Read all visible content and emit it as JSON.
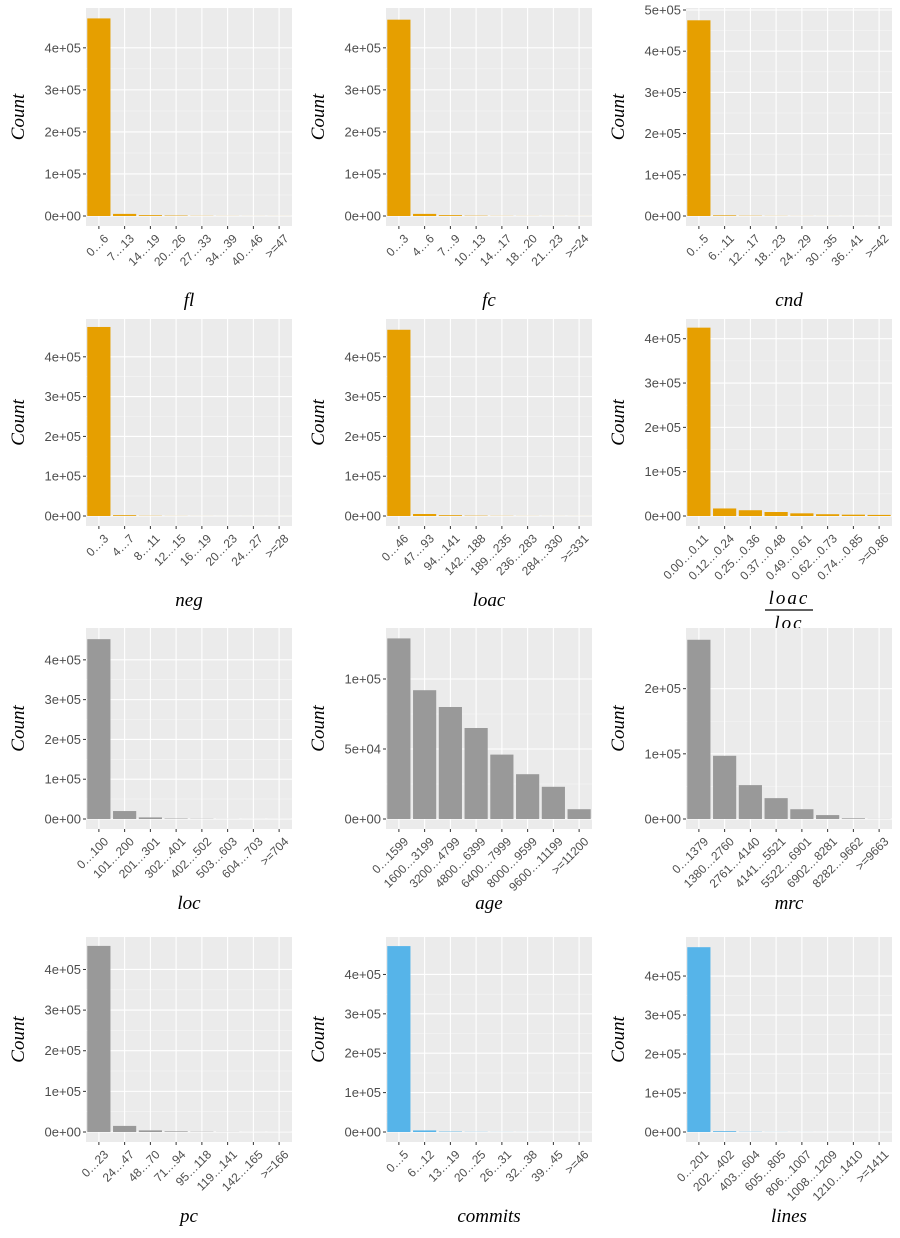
{
  "colors": {
    "orange": "#E69F00",
    "gray": "#999999",
    "blue": "#56B4E9",
    "panel_bg": "#EBEBEB",
    "grid": "#FFFFFF"
  },
  "chart_data": [
    {
      "type": "bar",
      "color": "orange",
      "xlabel": "fl",
      "ylabel": "Count",
      "categories": [
        "0…6",
        "7…13",
        "14…19",
        "20…26",
        "27…33",
        "34…39",
        "40…46",
        ">=47"
      ],
      "values": [
        470000,
        5000,
        2000,
        1000,
        400,
        200,
        100,
        100
      ],
      "ylim": [
        0,
        490000
      ],
      "yticks": [
        0,
        100000,
        200000,
        300000,
        400000
      ],
      "ytick_labels": [
        "0e+00",
        "1e+05",
        "2e+05",
        "3e+05",
        "4e+05"
      ]
    },
    {
      "type": "bar",
      "color": "orange",
      "xlabel": "fc",
      "ylabel": "Count",
      "categories": [
        "0…3",
        "4…6",
        "7…9",
        "10…13",
        "14…17",
        "18…20",
        "21…23",
        ">=24"
      ],
      "values": [
        467000,
        5000,
        2000,
        700,
        300,
        200,
        100,
        100
      ],
      "ylim": [
        0,
        490000
      ],
      "yticks": [
        0,
        100000,
        200000,
        300000,
        400000
      ],
      "ytick_labels": [
        "0e+00",
        "1e+05",
        "2e+05",
        "3e+05",
        "4e+05"
      ]
    },
    {
      "type": "bar",
      "color": "orange",
      "xlabel": "cnd",
      "ylabel": "Count",
      "categories": [
        "0…5",
        "6…11",
        "12…17",
        "18…23",
        "24…29",
        "30…35",
        "36…41",
        ">=42"
      ],
      "values": [
        475000,
        1500,
        600,
        300,
        150,
        100,
        50,
        50
      ],
      "ylim": [
        0,
        500000
      ],
      "yticks": [
        0,
        100000,
        200000,
        300000,
        400000,
        500000
      ],
      "ytick_labels": [
        "0e+00",
        "1e+05",
        "2e+05",
        "3e+05",
        "4e+05",
        "5e+05"
      ]
    },
    {
      "type": "bar",
      "color": "orange",
      "xlabel": "neg",
      "ylabel": "Count",
      "categories": [
        "0…3",
        "4…7",
        "8…11",
        "12…15",
        "16…19",
        "20…23",
        "24…27",
        ">=28"
      ],
      "values": [
        475000,
        2000,
        500,
        200,
        100,
        50,
        50,
        50
      ],
      "ylim": [
        0,
        490000
      ],
      "yticks": [
        0,
        100000,
        200000,
        300000,
        400000
      ],
      "ytick_labels": [
        "0e+00",
        "1e+05",
        "2e+05",
        "3e+05",
        "4e+05"
      ]
    },
    {
      "type": "bar",
      "color": "orange",
      "xlabel": "loac",
      "ylabel": "Count",
      "categories": [
        "0…46",
        "47…93",
        "94…141",
        "142…188",
        "189…235",
        "236…283",
        "284…330",
        ">=331"
      ],
      "values": [
        468000,
        5000,
        2000,
        800,
        400,
        200,
        100,
        100
      ],
      "ylim": [
        0,
        490000
      ],
      "yticks": [
        0,
        100000,
        200000,
        300000,
        400000
      ],
      "ytick_labels": [
        "0e+00",
        "1e+05",
        "2e+05",
        "3e+05",
        "4e+05"
      ]
    },
    {
      "type": "bar",
      "color": "orange",
      "xlabel": "",
      "xlabel_num": "loac",
      "xlabel_den": "loc",
      "ylabel": "Count",
      "categories": [
        "0.00…0.11",
        "0.12…0.24",
        "0.25…0.36",
        "0.37…0.48",
        "0.49…0.61",
        "0.62…0.73",
        "0.74…0.85",
        ">=0.86"
      ],
      "values": [
        425000,
        17000,
        13000,
        9000,
        6000,
        4000,
        3000,
        2500
      ],
      "ylim": [
        0,
        440000
      ],
      "yticks": [
        0,
        100000,
        200000,
        300000,
        400000
      ],
      "ytick_labels": [
        "0e+00",
        "1e+05",
        "2e+05",
        "3e+05",
        "4e+05"
      ]
    },
    {
      "type": "bar",
      "color": "gray",
      "xlabel": "loc",
      "ylabel": "Count",
      "categories": [
        "0…100",
        "101…200",
        "201…301",
        "302…401",
        "402…502",
        "503…603",
        "604…703",
        ">=704"
      ],
      "values": [
        452000,
        20000,
        4000,
        1000,
        500,
        200,
        100,
        100
      ],
      "ylim": [
        0,
        475000
      ],
      "yticks": [
        0,
        100000,
        200000,
        300000,
        400000
      ],
      "ytick_labels": [
        "0e+00",
        "1e+05",
        "2e+05",
        "3e+05",
        "4e+05"
      ]
    },
    {
      "type": "bar",
      "color": "gray",
      "xlabel": "age",
      "ylabel": "Count",
      "categories": [
        "0…1599",
        "1600…3199",
        "3200…4799",
        "4800…6399",
        "6400…7999",
        "8000…9599",
        "9600…11199",
        ">=11200"
      ],
      "values": [
        129000,
        92000,
        80000,
        65000,
        46000,
        32000,
        23000,
        7000
      ],
      "ylim": [
        0,
        135000
      ],
      "yticks": [
        0,
        50000,
        100000
      ],
      "ytick_labels": [
        "0e+00",
        "5e+04",
        "1e+05"
      ]
    },
    {
      "type": "bar",
      "color": "gray",
      "xlabel": "mrc",
      "ylabel": "Count",
      "categories": [
        "0…1379",
        "1380…2760",
        "2761…4140",
        "4141…5521",
        "5522…6901",
        "6902…8281",
        "8282…9662",
        ">=9663"
      ],
      "values": [
        275000,
        97000,
        52000,
        32000,
        15000,
        6000,
        1000,
        200
      ],
      "ylim": [
        0,
        290000
      ],
      "yticks": [
        0,
        100000,
        200000
      ],
      "ytick_labels": [
        "0e+00",
        "1e+05",
        "2e+05"
      ]
    },
    {
      "type": "bar",
      "color": "gray",
      "xlabel": "pc",
      "ylabel": "Count",
      "categories": [
        "0…23",
        "24…47",
        "48…70",
        "71…94",
        "95…118",
        "119…141",
        "142…165",
        ">=166"
      ],
      "values": [
        458000,
        15000,
        4000,
        1500,
        600,
        300,
        100,
        100
      ],
      "ylim": [
        0,
        475000
      ],
      "yticks": [
        0,
        100000,
        200000,
        300000,
        400000
      ],
      "ytick_labels": [
        "0e+00",
        "1e+05",
        "2e+05",
        "3e+05",
        "4e+05"
      ]
    },
    {
      "type": "bar",
      "color": "blue",
      "xlabel": "commits",
      "ylabel": "Count",
      "categories": [
        "0…5",
        "6…12",
        "13…19",
        "20…25",
        "26…31",
        "32…38",
        "39…45",
        ">=46"
      ],
      "values": [
        472000,
        4000,
        1000,
        400,
        200,
        100,
        50,
        50
      ],
      "ylim": [
        0,
        490000
      ],
      "yticks": [
        0,
        100000,
        200000,
        300000,
        400000
      ],
      "ytick_labels": [
        "0e+00",
        "1e+05",
        "2e+05",
        "3e+05",
        "4e+05"
      ]
    },
    {
      "type": "bar",
      "color": "blue",
      "xlabel": "lines",
      "ylabel": "Count",
      "categories": [
        "0…201",
        "202…402",
        "403…604",
        "605…805",
        "806…1007",
        "1008…1209",
        "1210…1410",
        ">=1411"
      ],
      "values": [
        474000,
        2000,
        500,
        200,
        100,
        50,
        50,
        50
      ],
      "ylim": [
        0,
        495000
      ],
      "yticks": [
        0,
        100000,
        200000,
        300000,
        400000
      ],
      "ytick_labels": [
        "0e+00",
        "1e+05",
        "2e+05",
        "3e+05",
        "4e+05"
      ]
    }
  ]
}
